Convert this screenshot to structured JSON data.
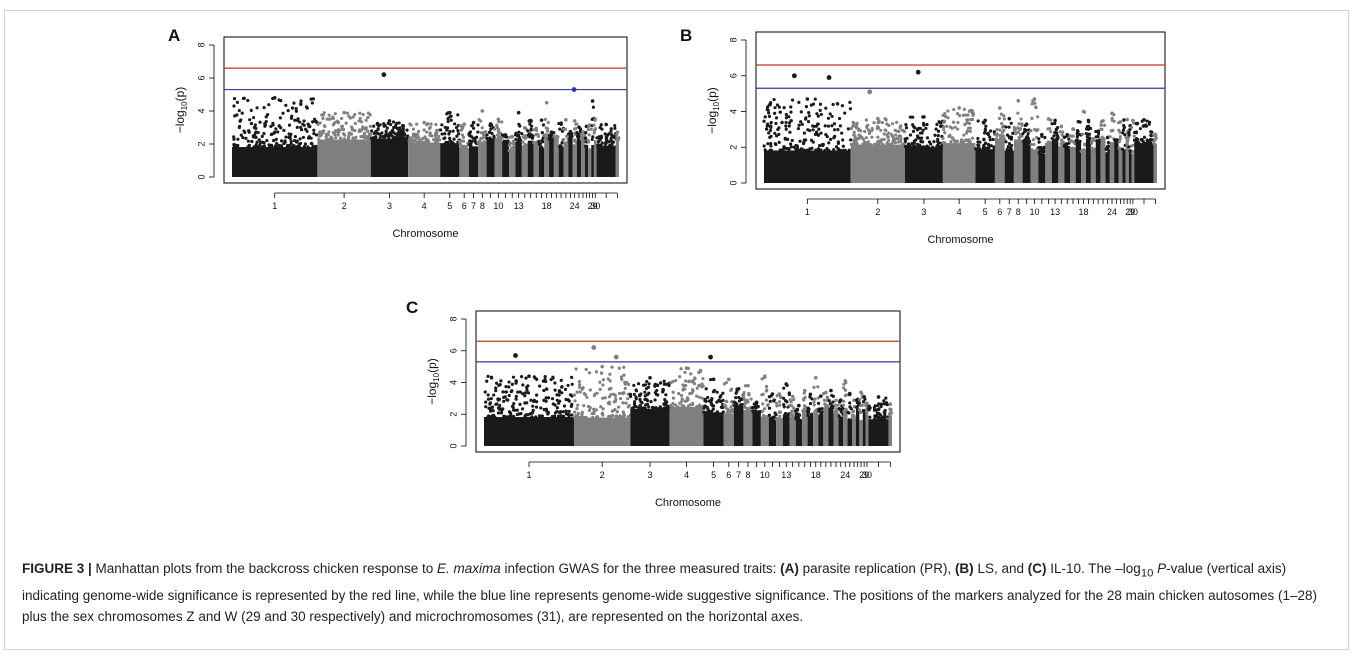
{
  "caption": {
    "lead": "FIGURE 3 |",
    "t1": " Manhattan plots from the backcross chicken response to ",
    "t1i": "E. maxima",
    "t2": " infection GWAS for the three measured traits: ",
    "markA": "(A)",
    "t3": " parasite replication (PR), ",
    "markB": "(B)",
    "t4": " LS, and ",
    "markC": "(C)",
    "t5": " IL-10. The –log",
    "t5sub": "10",
    "t5i": " P",
    "t6": "-value (vertical axis) indicating genome-wide significance is represented by the red line, while the blue line represents genome-wide suggestive significance. The positions of the markers analyzed for the 28 main chicken autosomes (1–28) plus the sex chromosomes Z and W (29 and 30 respectively) and microchromosomes (31), are represented on the horizontal axes."
  },
  "colors": {
    "odd_chromosome": "#1a1a1a",
    "even_chromosome": "#808080",
    "significance_line": "#c0392b",
    "suggestive_line": "#2e3a9e",
    "axis": "#000000"
  },
  "chart_data": [
    {
      "panel": "A",
      "type": "scatter",
      "xlabel": "Chromosome",
      "ylabel": "−log10(p)",
      "ylim": [
        0,
        8
      ],
      "yticks": [
        "0",
        "2",
        "4",
        "6",
        "8"
      ],
      "xtick_labels": [
        "1",
        "2",
        "3",
        "4",
        "5",
        "6",
        "7",
        "8",
        "10",
        "13",
        "18",
        "24",
        "29",
        "30"
      ],
      "significance_threshold": 6.6,
      "suggestive_threshold": 5.3,
      "chromosome_peaks": [
        4.8,
        3.9,
        3.4,
        3.3,
        3.9,
        3.2,
        3.3,
        4.0,
        3.5,
        3.9,
        4.5,
        3.4,
        4.6,
        3.5
      ],
      "top_hits": [
        {
          "chromosome": "3",
          "value": 6.2,
          "color": "odd"
        },
        {
          "chromosome": "24",
          "value": 5.3,
          "color": "blue"
        }
      ]
    },
    {
      "panel": "B",
      "type": "scatter",
      "xlabel": "Chromosome",
      "ylabel": "−log10(p)",
      "ylim": [
        0,
        8
      ],
      "yticks": [
        "0",
        "2",
        "4",
        "6",
        "8"
      ],
      "xtick_labels": [
        "1",
        "2",
        "3",
        "4",
        "5",
        "6",
        "7",
        "8",
        "10",
        "13",
        "18",
        "24",
        "29",
        "30"
      ],
      "significance_threshold": 6.6,
      "suggestive_threshold": 5.3,
      "chromosome_peaks": [
        4.7,
        3.6,
        3.7,
        4.2,
        3.5,
        4.2,
        3.6,
        4.6,
        4.7,
        3.5,
        4.0,
        3.9,
        3.2,
        3.5
      ],
      "top_hits": [
        {
          "chromosome": "1",
          "value": 6.0,
          "color": "odd"
        },
        {
          "chromosome": "1",
          "value": 5.9,
          "color": "odd"
        },
        {
          "chromosome": "2",
          "value": 5.1,
          "color": "even"
        },
        {
          "chromosome": "3",
          "value": 6.2,
          "color": "odd"
        }
      ]
    },
    {
      "panel": "C",
      "type": "scatter",
      "xlabel": "Chromosome",
      "ylabel": "−log10(p)",
      "ylim": [
        0,
        8
      ],
      "yticks": [
        "0",
        "2",
        "4",
        "6",
        "8"
      ],
      "xtick_labels": [
        "1",
        "2",
        "3",
        "4",
        "5",
        "6",
        "7",
        "8",
        "10",
        "13",
        "18",
        "24",
        "29",
        "30"
      ],
      "significance_threshold": 6.6,
      "suggestive_threshold": 5.3,
      "chromosome_peaks": [
        4.4,
        5.0,
        4.3,
        4.9,
        4.2,
        4.2,
        3.6,
        3.8,
        4.4,
        3.9,
        4.3,
        4.1,
        3.1,
        2.7
      ],
      "top_hits": [
        {
          "chromosome": "1",
          "value": 5.7,
          "color": "odd"
        },
        {
          "chromosome": "2",
          "value": 6.2,
          "color": "even"
        },
        {
          "chromosome": "2",
          "value": 5.6,
          "color": "even"
        },
        {
          "chromosome": "5",
          "value": 5.6,
          "color": "odd"
        }
      ]
    }
  ]
}
